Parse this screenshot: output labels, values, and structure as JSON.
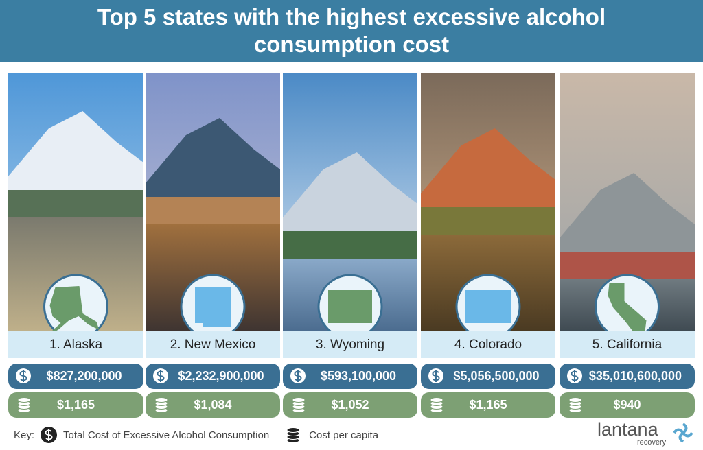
{
  "header": {
    "title": "Top 5 states with the highest excessive alcohol consumption cost"
  },
  "states": [
    {
      "label": "1. Alaska",
      "total_cost": "$827,200,000",
      "cost_per_capita": "$1,165"
    },
    {
      "label": "2. New Mexico",
      "total_cost": "$2,232,900,000",
      "cost_per_capita": "$1,084"
    },
    {
      "label": "3. Wyoming",
      "total_cost": "$593,100,000",
      "cost_per_capita": "$1,052"
    },
    {
      "label": "4. Colorado",
      "total_cost": "$5,056,500,000",
      "cost_per_capita": "$1,165"
    },
    {
      "label": "5. California",
      "total_cost": "$35,010,600,000",
      "cost_per_capita": "$940"
    }
  ],
  "key": {
    "label": "Key:",
    "total_cost": "Total Cost of Excessive Alcohol Consumption",
    "cost_per_capita": "Cost per capita"
  },
  "logo": {
    "name": "lantana",
    "tagline": "recovery"
  }
}
